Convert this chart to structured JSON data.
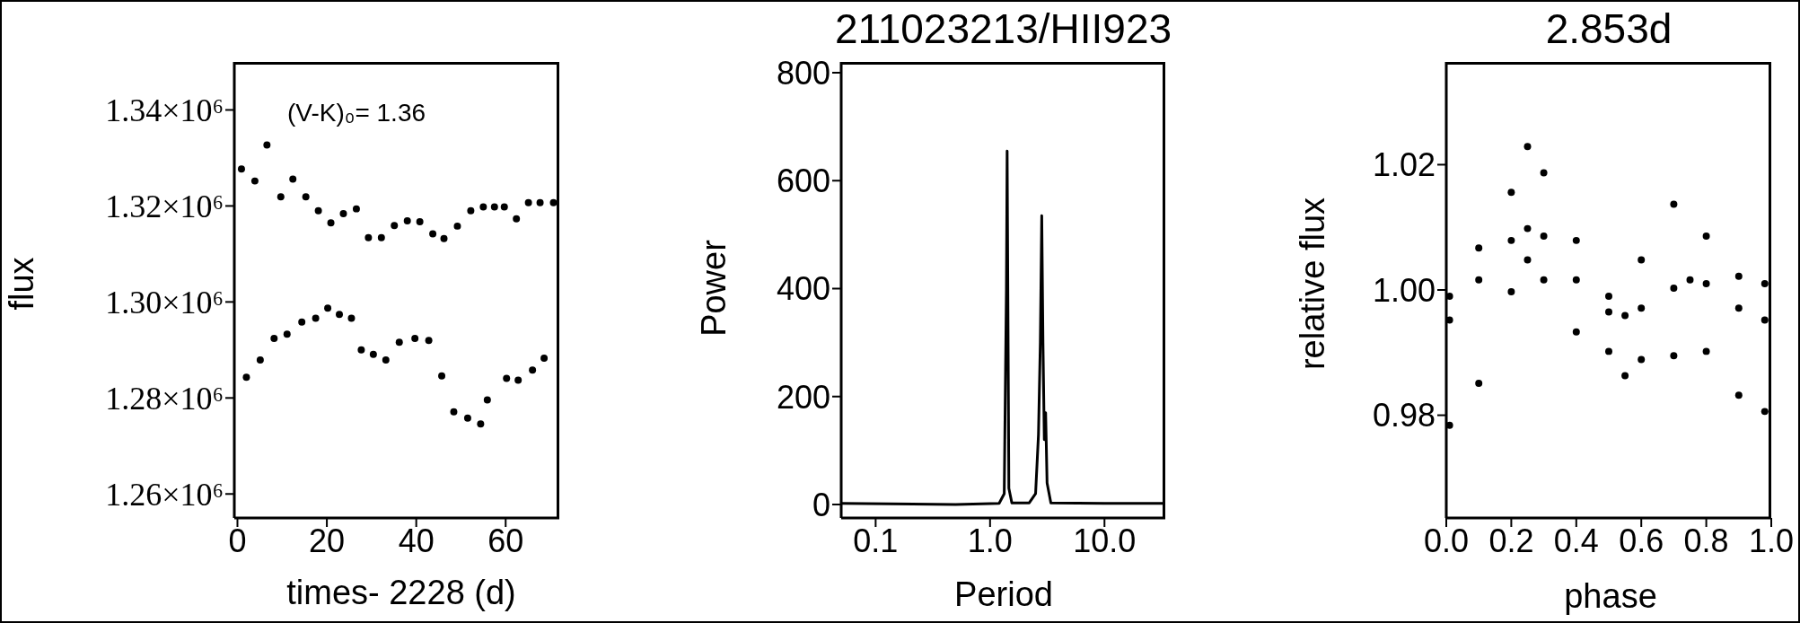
{
  "chart_data": [
    {
      "type": "scatter",
      "xlabel": "times- 2228 (d)",
      "ylabel": "flux",
      "annotations": [
        "(V-K)₀= 1.36"
      ],
      "color": "#000000",
      "marker": "circle",
      "x": [
        0.9,
        2.0,
        3.9,
        5.1,
        6.6,
        8.2,
        9.7,
        11.1,
        12.4,
        14.4,
        15.3,
        17.5,
        18.1,
        20.2,
        20.9,
        22.8,
        23.7,
        25.5,
        26.6,
        27.7,
        29.3,
        30.4,
        32.2,
        33.2,
        35.1,
        36.2,
        38.0,
        39.7,
        40.8,
        42.8,
        43.7,
        45.7,
        46.2,
        48.4,
        49.2,
        51.5,
        52.2,
        54.4,
        55.0,
        55.9,
        57.5,
        59.7,
        60.2,
        62.4,
        62.8,
        65.1,
        66.0,
        67.7,
        68.6,
        70.7
      ],
      "values": [
        1327700,
        1284300,
        1325200,
        1287900,
        1332700,
        1292400,
        1321900,
        1293300,
        1325600,
        1295800,
        1321900,
        1296600,
        1319000,
        1298700,
        1316500,
        1297400,
        1318400,
        1296600,
        1319400,
        1290000,
        1313400,
        1289100,
        1313400,
        1287900,
        1315900,
        1291600,
        1316900,
        1292400,
        1316700,
        1292000,
        1314200,
        1284600,
        1313200,
        1277100,
        1315800,
        1275800,
        1319000,
        1274600,
        1319800,
        1279600,
        1319800,
        1319800,
        1284100,
        1317300,
        1283700,
        1320700,
        1285800,
        1320700,
        1288300,
        1320700
      ],
      "xlim": [
        -0.7,
        72
      ],
      "xticks": [
        0,
        20,
        40,
        60
      ],
      "ylim": [
        1255000,
        1350000
      ],
      "yticks": [
        {
          "value": 1260000,
          "label": "1.26×10⁶"
        },
        {
          "value": 1280000,
          "label": "1.28×10⁶"
        },
        {
          "value": 1300000,
          "label": "1.30×10⁶"
        },
        {
          "value": 1320000,
          "label": "1.32×10⁶"
        },
        {
          "value": 1340000,
          "label": "1.34×10⁶"
        }
      ]
    },
    {
      "type": "line",
      "title": "211023213/HII923",
      "xlabel": "Period",
      "ylabel": "Power",
      "color": "#000000",
      "log": "x",
      "x": [
        0.05,
        0.5,
        1.2,
        1.33,
        1.39,
        1.41,
        1.43,
        1.46,
        1.55,
        2.2,
        2.5,
        2.65,
        2.75,
        2.83,
        2.9,
        2.98,
        3.06,
        3.15,
        3.4,
        10,
        34
      ],
      "values": [
        2,
        0,
        2,
        20,
        400,
        655,
        400,
        30,
        3,
        3,
        20,
        130,
        300,
        535,
        300,
        120,
        170,
        40,
        3,
        2,
        2
      ],
      "xlim": [
        0.05,
        34
      ],
      "xticks": [
        {
          "value": 0.1,
          "label": "0.1"
        },
        {
          "value": 1,
          "label": "1.0"
        },
        {
          "value": 10,
          "label": "10.0"
        }
      ],
      "ylim": [
        -25,
        820
      ],
      "yticks": [
        0,
        200,
        400,
        600,
        800
      ]
    },
    {
      "type": "scatter",
      "title": "2.853d",
      "xlabel": "phase",
      "ylabel": "relative flux",
      "color": "#000000",
      "marker": "circle",
      "x": [
        0.01,
        0.1,
        0.2,
        0.25,
        0.3,
        0.4,
        0.5,
        0.55,
        0.6,
        0.7,
        0.75,
        0.8,
        0.9,
        0.98,
        0.01,
        0.1,
        0.2,
        0.25,
        0.3,
        0.4,
        0.5,
        0.6,
        0.7,
        0.8,
        0.9,
        0.98,
        0.01,
        0.1,
        0.2,
        0.25,
        0.3,
        0.4,
        0.5,
        0.55,
        0.6,
        0.7,
        0.8,
        0.9,
        0.98
      ],
      "values": [
        0.9952,
        1.0016,
        1.0079,
        1.0098,
        1.0086,
        1.0016,
        0.9965,
        0.9959,
        0.9971,
        1.0003,
        1.0016,
        1.001,
        0.9971,
        0.9952,
        0.999,
        1.0067,
        1.0156,
        1.0229,
        1.0187,
        1.0079,
        0.999,
        1.0048,
        1.0137,
        1.0086,
        1.0022,
        1.001,
        0.9784,
        0.9851,
        0.9997,
        1.0048,
        1.0016,
        0.9933,
        0.9902,
        0.9863,
        0.9889,
        0.9895,
        0.9902,
        0.9832,
        0.9806
      ],
      "xlim": [
        0,
        1
      ],
      "xticks": [
        {
          "value": 0,
          "label": "0.0"
        },
        {
          "value": 0.2,
          "label": "0.2"
        },
        {
          "value": 0.4,
          "label": "0.4"
        },
        {
          "value": 0.6,
          "label": "0.6"
        },
        {
          "value": 0.8,
          "label": "0.8"
        },
        {
          "value": 1,
          "label": "1.0"
        }
      ],
      "ylim": [
        0.9636,
        1.0364
      ],
      "yticks": [
        {
          "value": 0.98,
          "label": "0.98"
        },
        {
          "value": 1,
          "label": "1.00"
        },
        {
          "value": 1.02,
          "label": "1.02"
        }
      ]
    }
  ]
}
